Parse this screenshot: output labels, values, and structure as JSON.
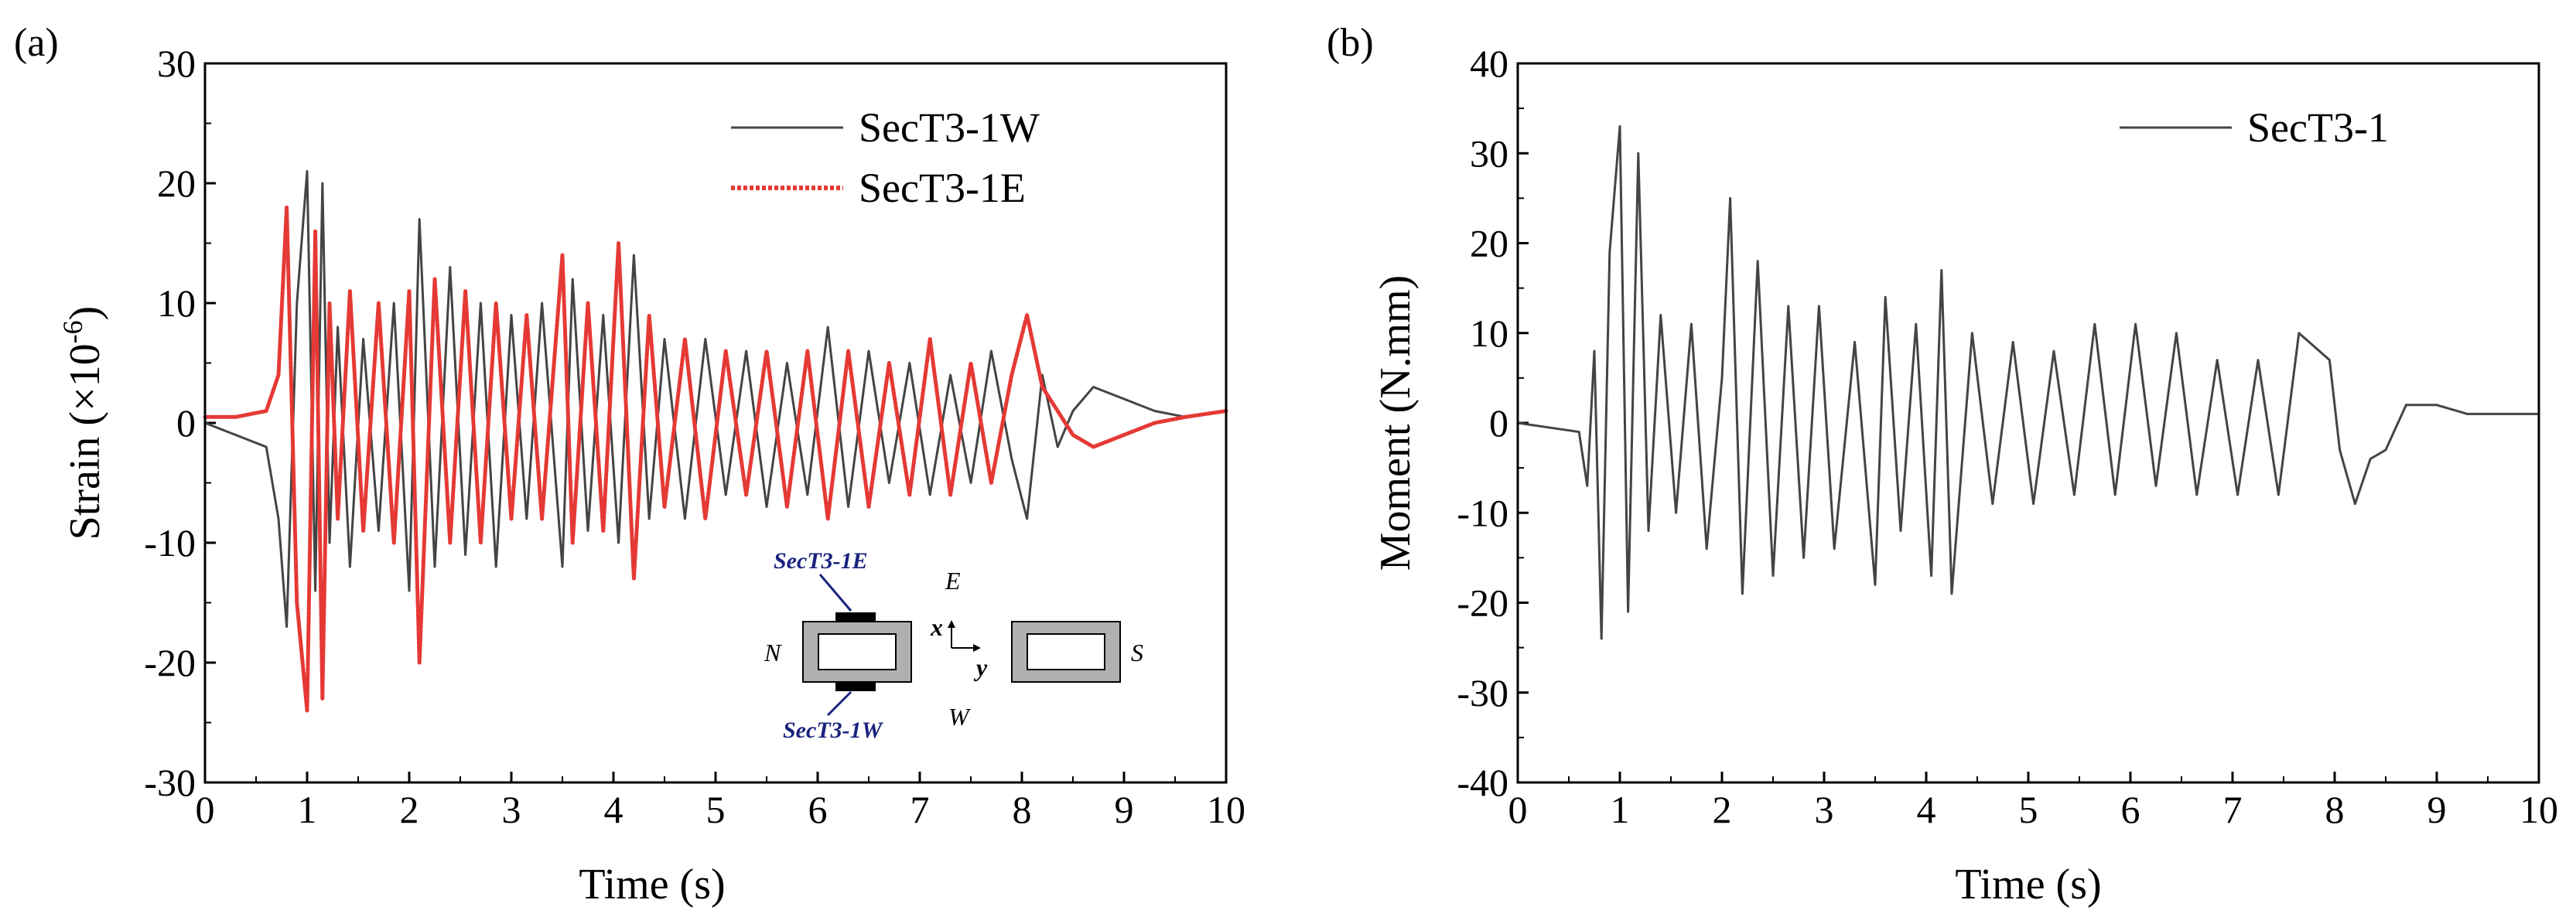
{
  "chart_data": [
    {
      "type": "line",
      "panel_label": "(a)",
      "xlabel": "Time (s)",
      "ylabel_prefix": "Strain (×10",
      "ylabel_exp": "-6",
      "ylabel_suffix": ")",
      "xlim": [
        0,
        10
      ],
      "ylim": [
        -30,
        30
      ],
      "xticks": [
        "0",
        "1",
        "2",
        "3",
        "4",
        "5",
        "6",
        "7",
        "8",
        "9",
        "10"
      ],
      "yticks": [
        "-30",
        "-20",
        "-10",
        "0",
        "10",
        "20",
        "30"
      ],
      "legend_position": "top-right",
      "series": [
        {
          "name": "SecT3-1W",
          "color": "#444444",
          "style": "solid",
          "x": [
            0,
            0.3,
            0.6,
            0.72,
            0.8,
            0.9,
            1.0,
            1.08,
            1.15,
            1.22,
            1.3,
            1.42,
            1.55,
            1.7,
            1.85,
            2.0,
            2.1,
            2.25,
            2.4,
            2.55,
            2.7,
            2.85,
            3.0,
            3.15,
            3.3,
            3.5,
            3.6,
            3.75,
            3.9,
            4.05,
            4.2,
            4.35,
            4.5,
            4.7,
            4.9,
            5.1,
            5.3,
            5.5,
            5.7,
            5.9,
            6.1,
            6.3,
            6.5,
            6.7,
            6.9,
            7.1,
            7.3,
            7.5,
            7.7,
            7.9,
            8.05,
            8.2,
            8.35,
            8.5,
            8.7,
            9.0,
            9.3,
            9.6,
            10.0
          ],
          "y": [
            0,
            -1,
            -2,
            -8,
            -17,
            10,
            21,
            -14,
            20,
            -10,
            8,
            -12,
            7,
            -9,
            10,
            -14,
            17,
            -12,
            13,
            -11,
            10,
            -12,
            9,
            -8,
            10,
            -12,
            12,
            -9,
            9,
            -10,
            14,
            -8,
            7,
            -8,
            7,
            -6,
            6,
            -7,
            5,
            -6,
            8,
            -7,
            6,
            -5,
            5,
            -6,
            4,
            -5,
            6,
            -3,
            -8,
            4,
            -2,
            1,
            3,
            2,
            1,
            0.5,
            1
          ]
        },
        {
          "name": "SecT3-1E",
          "color": "#e53935",
          "style": "dotted",
          "x": [
            0,
            0.3,
            0.6,
            0.72,
            0.8,
            0.9,
            1.0,
            1.08,
            1.15,
            1.22,
            1.3,
            1.42,
            1.55,
            1.7,
            1.85,
            2.0,
            2.1,
            2.25,
            2.4,
            2.55,
            2.7,
            2.85,
            3.0,
            3.15,
            3.3,
            3.5,
            3.6,
            3.75,
            3.9,
            4.05,
            4.2,
            4.35,
            4.5,
            4.7,
            4.9,
            5.1,
            5.3,
            5.5,
            5.7,
            5.9,
            6.1,
            6.3,
            6.5,
            6.7,
            6.9,
            7.1,
            7.3,
            7.5,
            7.7,
            7.9,
            8.05,
            8.2,
            8.35,
            8.5,
            8.7,
            9.0,
            9.3,
            9.6,
            10.0
          ],
          "y": [
            0.5,
            0.5,
            1,
            4,
            18,
            -15,
            -24,
            16,
            -23,
            10,
            -8,
            11,
            -9,
            10,
            -10,
            11,
            -20,
            12,
            -10,
            11,
            -10,
            10,
            -8,
            9,
            -8,
            14,
            -10,
            10,
            -9,
            15,
            -13,
            9,
            -7,
            7,
            -8,
            6,
            -6,
            6,
            -7,
            6,
            -8,
            6,
            -7,
            5,
            -6,
            7,
            -6,
            5,
            -5,
            4,
            9,
            3,
            1,
            -1,
            -2,
            -1,
            0,
            0.5,
            1
          ]
        }
      ],
      "inset": {
        "top_label": "SecT3-1E",
        "bottom_label": "SecT3-1W",
        "dir_e": "E",
        "dir_w": "W",
        "dir_n": "N",
        "dir_s": "S",
        "axis_x": "x",
        "axis_y": "y"
      }
    },
    {
      "type": "line",
      "panel_label": "(b)",
      "xlabel": "Time (s)",
      "ylabel": "Moment (N.mm)",
      "xlim": [
        0,
        10
      ],
      "ylim": [
        -40,
        40
      ],
      "xticks": [
        "0",
        "1",
        "2",
        "3",
        "4",
        "5",
        "6",
        "7",
        "8",
        "9",
        "10"
      ],
      "yticks": [
        "-40",
        "-30",
        "-20",
        "-10",
        "0",
        "10",
        "20",
        "30",
        "40"
      ],
      "legend_position": "top-right",
      "series": [
        {
          "name": "SecT3-1",
          "color": "#444444",
          "style": "solid",
          "x": [
            0,
            0.3,
            0.6,
            0.68,
            0.75,
            0.82,
            0.9,
            1.0,
            1.08,
            1.18,
            1.28,
            1.4,
            1.55,
            1.7,
            1.85,
            2.0,
            2.08,
            2.2,
            2.35,
            2.5,
            2.65,
            2.8,
            2.95,
            3.1,
            3.3,
            3.5,
            3.6,
            3.75,
            3.9,
            4.05,
            4.15,
            4.25,
            4.45,
            4.65,
            4.85,
            5.05,
            5.25,
            5.45,
            5.65,
            5.85,
            6.05,
            6.25,
            6.45,
            6.65,
            6.85,
            7.05,
            7.25,
            7.45,
            7.65,
            7.85,
            7.95,
            8.05,
            8.2,
            8.35,
            8.5,
            8.7,
            9.0,
            9.3,
            9.6,
            10.0
          ],
          "y": [
            0,
            -0.5,
            -1,
            -7,
            8,
            -24,
            19,
            33,
            -21,
            30,
            -12,
            12,
            -10,
            11,
            -14,
            5,
            25,
            -19,
            18,
            -17,
            13,
            -15,
            13,
            -14,
            9,
            -18,
            14,
            -12,
            11,
            -17,
            17,
            -19,
            10,
            -9,
            9,
            -9,
            8,
            -8,
            11,
            -8,
            11,
            -7,
            10,
            -8,
            7,
            -8,
            7,
            -8,
            10,
            8,
            7,
            -3,
            -9,
            -4,
            -3,
            2,
            2,
            1,
            1,
            1
          ]
        }
      ]
    }
  ]
}
